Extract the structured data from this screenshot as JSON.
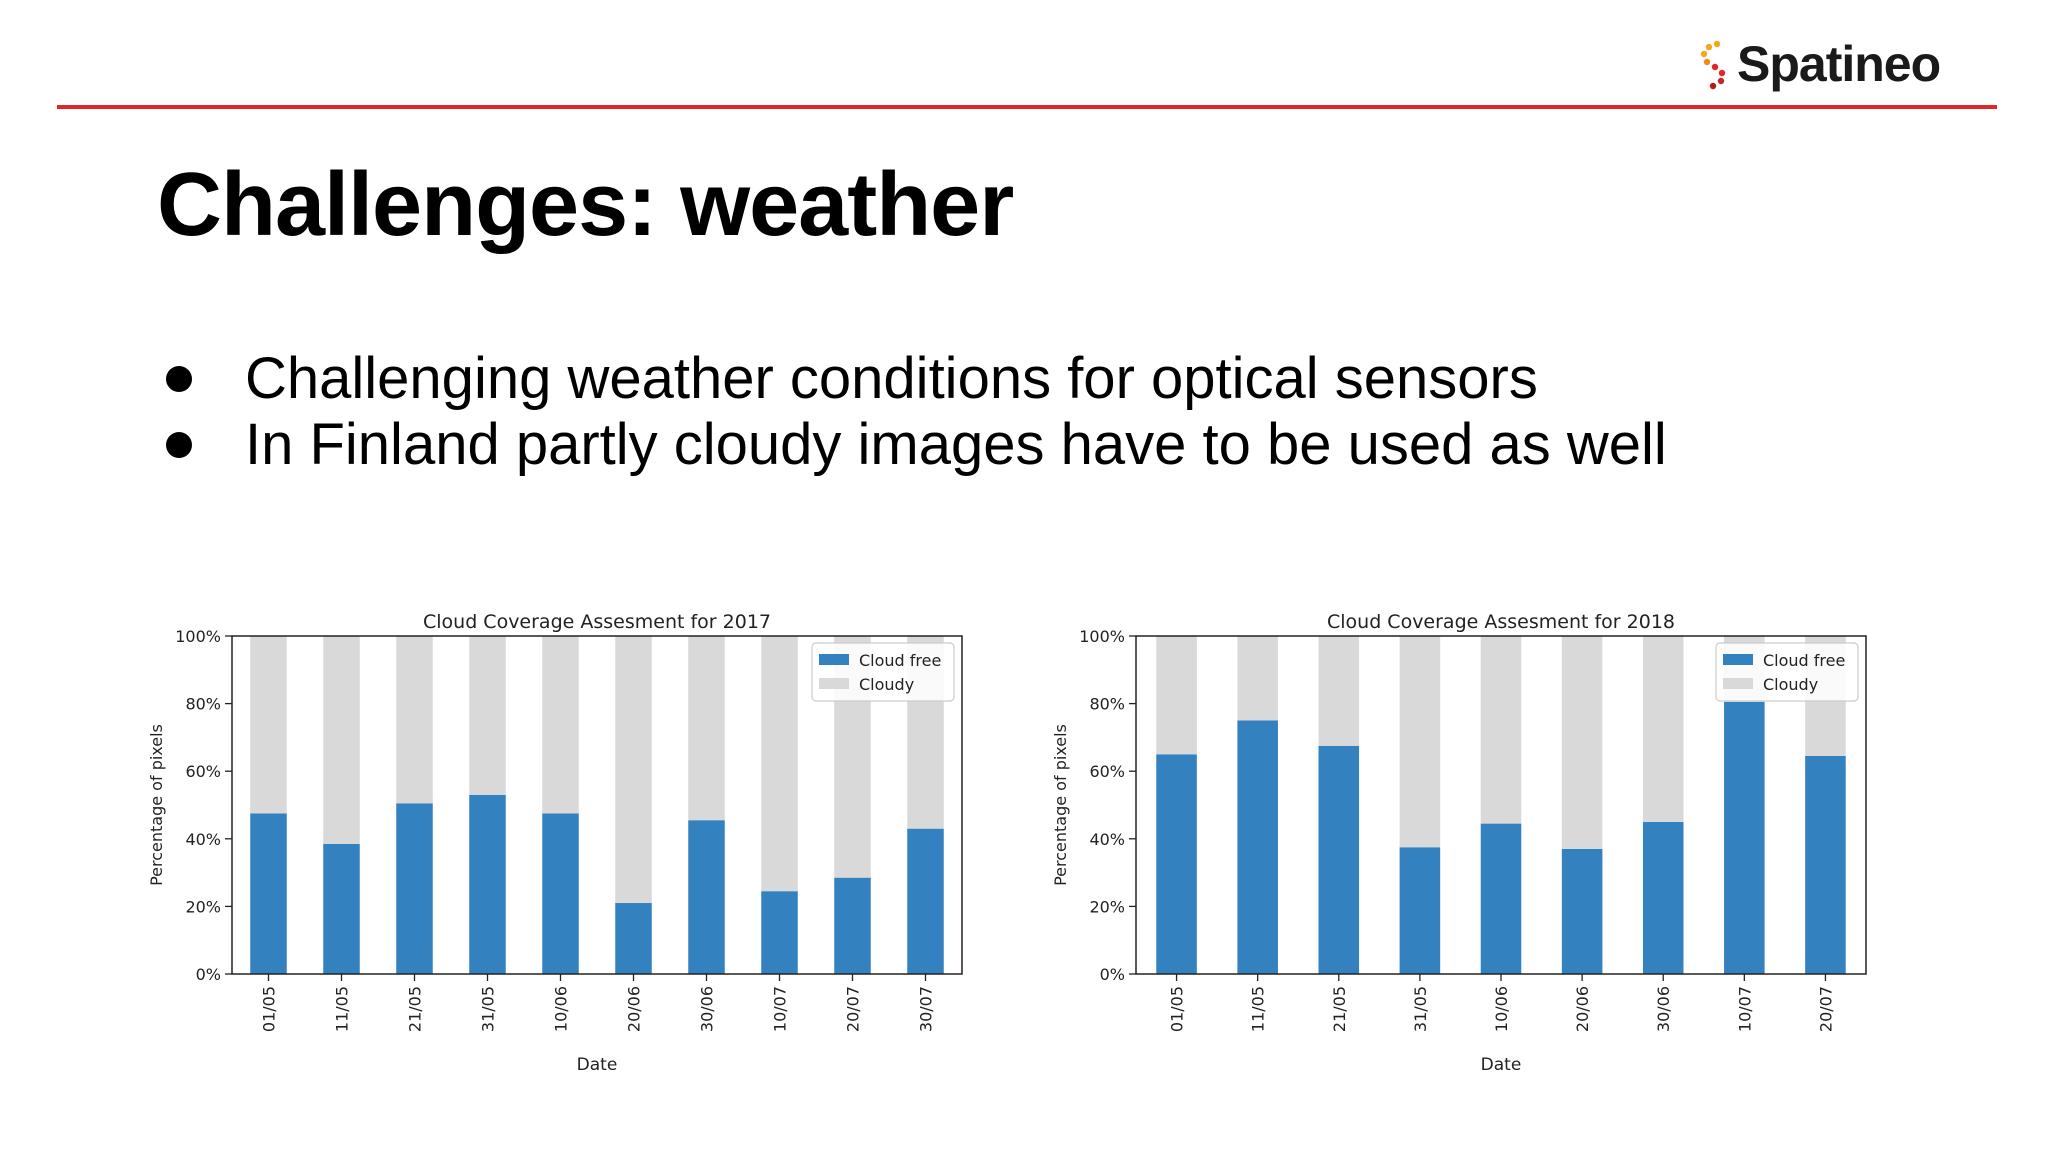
{
  "logo": {
    "text": "Spatineo",
    "brand_color": "#e0262b",
    "dot_colors": [
      "#f4a81d",
      "#e0262b",
      "#b71c1c"
    ]
  },
  "title": "Challenges: weather",
  "bullets": [
    "Challenging weather conditions for optical sensors",
    "In Finland partly cloudy images have to be used as well"
  ],
  "chart_data": [
    {
      "type": "bar",
      "stacked": true,
      "title": "Cloud Coverage Assesment for 2017",
      "xlabel": "Date",
      "ylabel": "Percentage of pixels",
      "ylim": [
        0,
        100
      ],
      "yticks": [
        "0%",
        "20%",
        "40%",
        "60%",
        "80%",
        "100%"
      ],
      "legend_position": "top-right",
      "categories": [
        "01/05",
        "11/05",
        "21/05",
        "31/05",
        "10/06",
        "20/06",
        "30/06",
        "10/07",
        "20/07",
        "30/07"
      ],
      "series": [
        {
          "name": "Cloud free",
          "color": "#3381bf",
          "values": [
            47.5,
            38.5,
            50.5,
            53,
            47.5,
            21,
            45.5,
            24.5,
            28.5,
            43
          ]
        },
        {
          "name": "Cloudy",
          "color": "#d9d9d9",
          "values": [
            52.5,
            61.5,
            49.5,
            47,
            52.5,
            79,
            54.5,
            75.5,
            71.5,
            57
          ]
        }
      ]
    },
    {
      "type": "bar",
      "stacked": true,
      "title": "Cloud Coverage Assesment for 2018",
      "xlabel": "Date",
      "ylabel": "Percentage of pixels",
      "ylim": [
        0,
        100
      ],
      "yticks": [
        "0%",
        "20%",
        "40%",
        "60%",
        "80%",
        "100%"
      ],
      "legend_position": "top-right",
      "categories": [
        "01/05",
        "11/05",
        "21/05",
        "31/05",
        "10/06",
        "20/06",
        "30/06",
        "10/07",
        "20/07"
      ],
      "series": [
        {
          "name": "Cloud free",
          "color": "#3381bf",
          "values": [
            65,
            75,
            67.5,
            37.5,
            44.5,
            37,
            45,
            80.5,
            64.5
          ]
        },
        {
          "name": "Cloudy",
          "color": "#d9d9d9",
          "values": [
            35,
            25,
            32.5,
            62.5,
            55.5,
            63,
            55,
            19.5,
            35.5
          ]
        }
      ]
    }
  ]
}
